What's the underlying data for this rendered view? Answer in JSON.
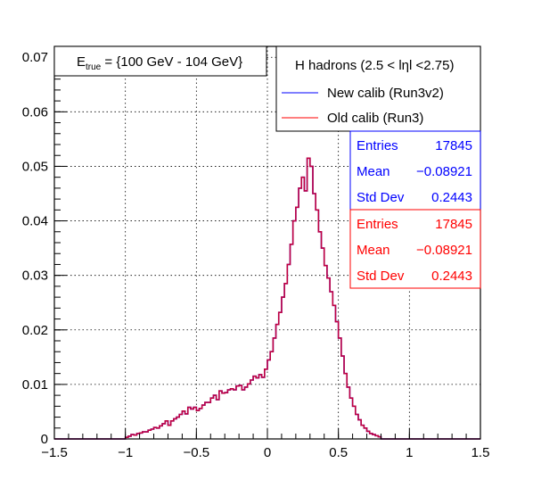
{
  "chart_data": {
    "type": "histogram",
    "title_box": {
      "text_prefix": "E",
      "text_sub": "true",
      "text_suffix": " = {100 GeV - 104 GeV}"
    },
    "legend": {
      "header": "H hadrons (2.5 < lηl <2.75)",
      "entries": [
        {
          "label": "New calib (Run3v2)",
          "color": "#5555ff"
        },
        {
          "label": "Old calib (Run3)",
          "color": "#ff5555"
        }
      ]
    },
    "xlim": [
      -1.5,
      1.5
    ],
    "ylim": [
      0,
      0.072
    ],
    "x_ticks": [
      {
        "v": -1.5,
        "label": "−1.5"
      },
      {
        "v": -1.0,
        "label": "−1"
      },
      {
        "v": -0.5,
        "label": "−0.5"
      },
      {
        "v": 0.0,
        "label": "0"
      },
      {
        "v": 0.5,
        "label": "0.5"
      },
      {
        "v": 1.0,
        "label": "1"
      },
      {
        "v": 1.5,
        "label": "1.5"
      }
    ],
    "y_ticks": [
      {
        "v": 0,
        "label": "0"
      },
      {
        "v": 0.01,
        "label": "0.01"
      },
      {
        "v": 0.02,
        "label": "0.02"
      },
      {
        "v": 0.03,
        "label": "0.03"
      },
      {
        "v": 0.04,
        "label": "0.04"
      },
      {
        "v": 0.05,
        "label": "0.05"
      },
      {
        "v": 0.06,
        "label": "0.06"
      },
      {
        "v": 0.07,
        "label": "0.07"
      }
    ],
    "grid": true,
    "bins": {
      "start": -1.0,
      "width": 0.02
    },
    "series": [
      {
        "name": "New calib (Run3v2)",
        "color": "#0000ff",
        "values": [
          0.0003,
          0.0005,
          0.0008,
          0.0007,
          0.001,
          0.0011,
          0.0013,
          0.0013,
          0.0016,
          0.0018,
          0.0021,
          0.002,
          0.0024,
          0.0028,
          0.0033,
          0.0025,
          0.0033,
          0.0037,
          0.004,
          0.0045,
          0.0051,
          0.0046,
          0.0058,
          0.0055,
          0.0058,
          0.0052,
          0.0056,
          0.0062,
          0.0067,
          0.0067,
          0.0075,
          0.008,
          0.0072,
          0.0088,
          0.0084,
          0.0085,
          0.009,
          0.0092,
          0.009,
          0.0097,
          0.0098,
          0.009,
          0.0095,
          0.0101,
          0.0108,
          0.0115,
          0.0112,
          0.0118,
          0.0113,
          0.0128,
          0.0145,
          0.016,
          0.0185,
          0.021,
          0.0232,
          0.026,
          0.0285,
          0.032,
          0.0357,
          0.04,
          0.0425,
          0.046,
          0.048,
          0.0455,
          0.0515,
          0.05,
          0.045,
          0.042,
          0.038,
          0.035,
          0.0318,
          0.0295,
          0.027,
          0.0245,
          0.0215,
          0.0185,
          0.0152,
          0.012,
          0.0095,
          0.0075,
          0.006,
          0.0045,
          0.0035,
          0.0025,
          0.002,
          0.0014,
          0.001,
          0.0008,
          0.0006,
          0.0004
        ]
      },
      {
        "name": "Old calib (Run3)",
        "color": "#ff0000",
        "values": [
          0.0003,
          0.0005,
          0.0008,
          0.0007,
          0.001,
          0.0011,
          0.0013,
          0.0013,
          0.0016,
          0.0018,
          0.0021,
          0.002,
          0.0024,
          0.0028,
          0.0033,
          0.0025,
          0.0033,
          0.0037,
          0.004,
          0.0045,
          0.0051,
          0.0046,
          0.0058,
          0.0055,
          0.0058,
          0.0052,
          0.0056,
          0.0062,
          0.0067,
          0.0067,
          0.0075,
          0.008,
          0.0072,
          0.0088,
          0.0084,
          0.0085,
          0.009,
          0.0092,
          0.009,
          0.0097,
          0.0098,
          0.009,
          0.0095,
          0.0101,
          0.0108,
          0.0115,
          0.0112,
          0.0118,
          0.0113,
          0.0128,
          0.0145,
          0.016,
          0.0185,
          0.021,
          0.0232,
          0.026,
          0.0285,
          0.032,
          0.0357,
          0.04,
          0.0425,
          0.046,
          0.048,
          0.0455,
          0.0515,
          0.05,
          0.045,
          0.042,
          0.038,
          0.035,
          0.0318,
          0.0295,
          0.027,
          0.0245,
          0.0215,
          0.0185,
          0.0152,
          0.012,
          0.0095,
          0.0075,
          0.006,
          0.0045,
          0.0035,
          0.0025,
          0.002,
          0.0014,
          0.001,
          0.0008,
          0.0006,
          0.0004
        ]
      }
    ],
    "stats": [
      {
        "color": "#0000ff",
        "rows": [
          {
            "key": "Entries",
            "value": "17845"
          },
          {
            "key": "Mean",
            "value": "−0.08921"
          },
          {
            "key": "Std Dev",
            "value": "0.2443"
          }
        ]
      },
      {
        "color": "#ff0000",
        "rows": [
          {
            "key": "Entries",
            "value": "17845"
          },
          {
            "key": "Mean",
            "value": "−0.08921"
          },
          {
            "key": "Std Dev",
            "value": "0.2443"
          }
        ]
      }
    ]
  }
}
